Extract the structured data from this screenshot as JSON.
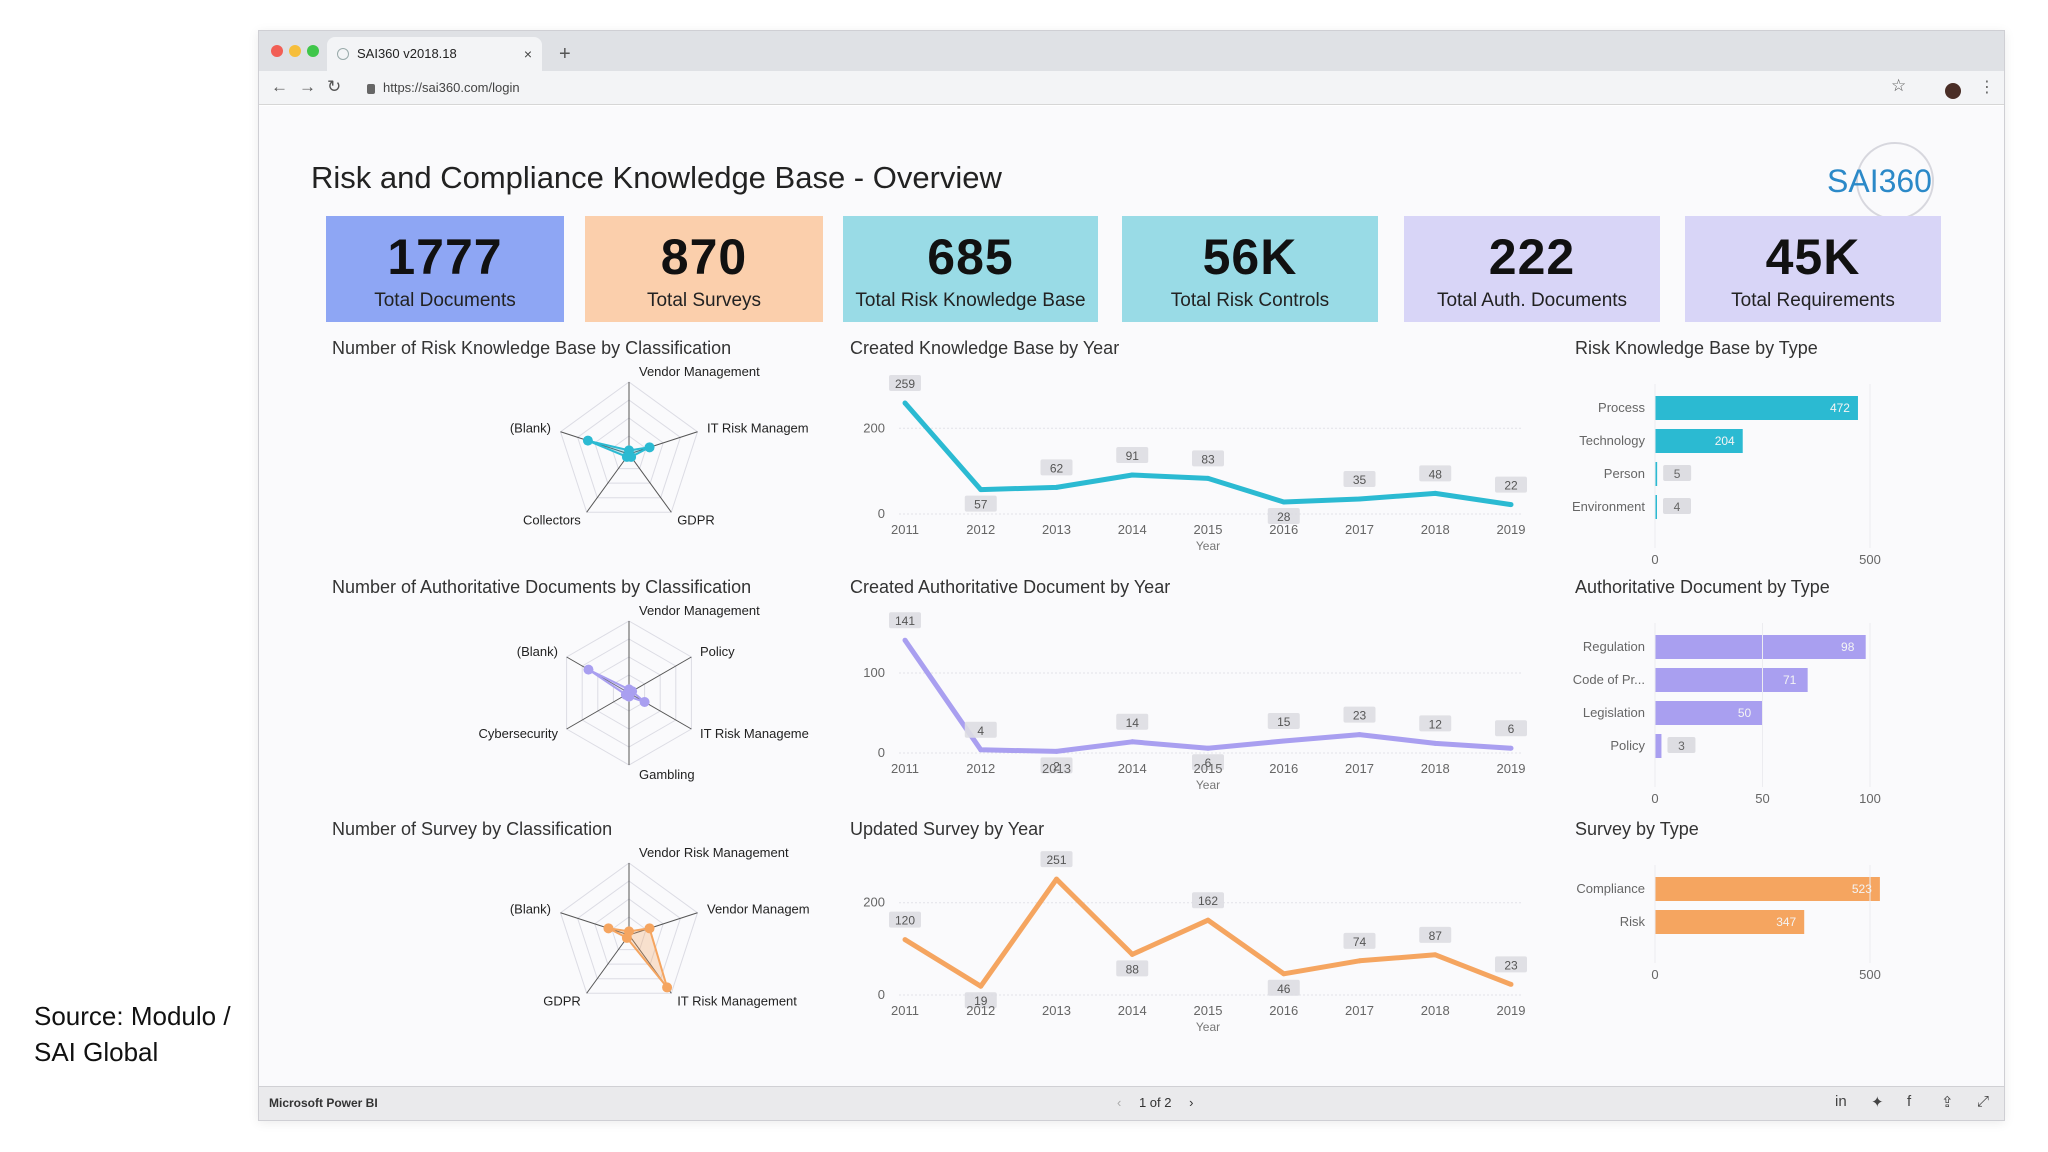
{
  "browser": {
    "tab_title": "SAI360 v2018.18",
    "tab_close": "×",
    "new_tab": "+",
    "url": "https://sai360.com/login",
    "back": "←",
    "forward": "→",
    "reload": "↻",
    "star": "☆",
    "menu": "⋮"
  },
  "report": {
    "title": "Risk and Compliance Knowledge Base - Overview",
    "logo_text": "SAI360"
  },
  "kpis": [
    {
      "value": "1777",
      "label": "Total Documents",
      "color": "#8ea6f4"
    },
    {
      "value": "870",
      "label": "Total Surveys",
      "color": "#fbcfac"
    },
    {
      "value": "685",
      "label": "Total Risk Knowledge Base",
      "color": "#99dbe6"
    },
    {
      "value": "56K",
      "label": "Total Risk Controls",
      "color": "#99dbe6"
    },
    {
      "value": "222",
      "label": "Total Auth. Documents",
      "color": "#d8d5f7"
    },
    {
      "value": "45K",
      "label": "Total Requirements",
      "color": "#d8d5f7"
    }
  ],
  "chart_data": [
    {
      "type": "radar",
      "title": "Number of Risk Knowledge Base by Classification",
      "axes": [
        "Vendor Management",
        "IT Risk Management",
        "GDPR",
        "Collectors",
        "(Blank)"
      ],
      "values": [
        0.05,
        0.3,
        0.05,
        0.05,
        0.6
      ],
      "color": "#2bbad2"
    },
    {
      "type": "line",
      "title": "Created Knowledge Base by Year",
      "x": [
        "2011",
        "2012",
        "2013",
        "2014",
        "2015",
        "2016",
        "2017",
        "2018",
        "2019"
      ],
      "values": [
        259,
        57,
        62,
        91,
        83,
        28,
        35,
        48,
        22
      ],
      "xlabel": "Year",
      "ylim": [
        0,
        280
      ],
      "yticks": [
        "0",
        "200"
      ],
      "ytick_values": [
        0,
        200
      ],
      "color": "#2bbad2"
    },
    {
      "type": "bar",
      "title": "Risk Knowledge Base by Type",
      "categories": [
        "Process",
        "Technology",
        "Person",
        "Environment"
      ],
      "values": [
        472,
        204,
        5,
        4
      ],
      "xlim": [
        0,
        500
      ],
      "xticks": [
        "0",
        "500"
      ],
      "xtick_values": [
        0,
        500
      ],
      "color": "#2bbad2"
    },
    {
      "type": "radar",
      "title": "Number of Authoritative Documents by Classification",
      "axes": [
        "Vendor Management",
        "Policy",
        "IT Risk Management",
        "Gambling",
        "Cybersecurity",
        "(Blank)"
      ],
      "values": [
        0.05,
        0.05,
        0.25,
        0.05,
        0.05,
        0.65
      ],
      "color": "#a99ff0"
    },
    {
      "type": "line",
      "title": "Created Authoritative Document by Year",
      "x": [
        "2011",
        "2012",
        "2013",
        "2014",
        "2015",
        "2016",
        "2017",
        "2018",
        "2019"
      ],
      "values": [
        141,
        4,
        2,
        14,
        6,
        15,
        23,
        12,
        6
      ],
      "xlabel": "Year",
      "ylim": [
        0,
        150
      ],
      "yticks": [
        "0",
        "100"
      ],
      "ytick_values": [
        0,
        100
      ],
      "color": "#a99ff0"
    },
    {
      "type": "bar",
      "title": "Authoritative Document by Type",
      "categories": [
        "Regulation",
        "Code of Pr...",
        "Legislation",
        "Policy"
      ],
      "values": [
        98,
        71,
        50,
        3
      ],
      "xlim": [
        0,
        100
      ],
      "xticks": [
        "0",
        "50",
        "100"
      ],
      "xtick_values": [
        0,
        50,
        100
      ],
      "color": "#a99ff0"
    },
    {
      "type": "radar",
      "title": "Number of Survey by Classification",
      "axes": [
        "Vendor Risk Management",
        "Vendor Managem...",
        "IT Risk Management",
        "GDPR",
        "(Blank)"
      ],
      "values": [
        0.05,
        0.3,
        0.9,
        0.05,
        0.3
      ],
      "color": "#f5a560"
    },
    {
      "type": "line",
      "title": "Updated Survey by Year",
      "x": [
        "2011",
        "2012",
        "2013",
        "2014",
        "2015",
        "2016",
        "2017",
        "2018",
        "2019"
      ],
      "values": [
        120,
        19,
        251,
        88,
        162,
        46,
        74,
        87,
        23
      ],
      "xlabel": "Year",
      "ylim": [
        0,
        260
      ],
      "yticks": [
        "0",
        "200"
      ],
      "ytick_values": [
        0,
        200
      ],
      "color": "#f5a560"
    },
    {
      "type": "bar",
      "title": "Survey by Type",
      "categories": [
        "Compliance",
        "Risk"
      ],
      "values": [
        523,
        347
      ],
      "xlim": [
        0,
        500
      ],
      "xticks": [
        "0",
        "500"
      ],
      "xtick_values": [
        0,
        500
      ],
      "color": "#f5a560"
    }
  ],
  "footer": {
    "brand": "Microsoft Power BI",
    "pager": "1 of 2",
    "prev": "‹",
    "next": "›"
  },
  "source_note": "Source: Modulo / SAI Global"
}
